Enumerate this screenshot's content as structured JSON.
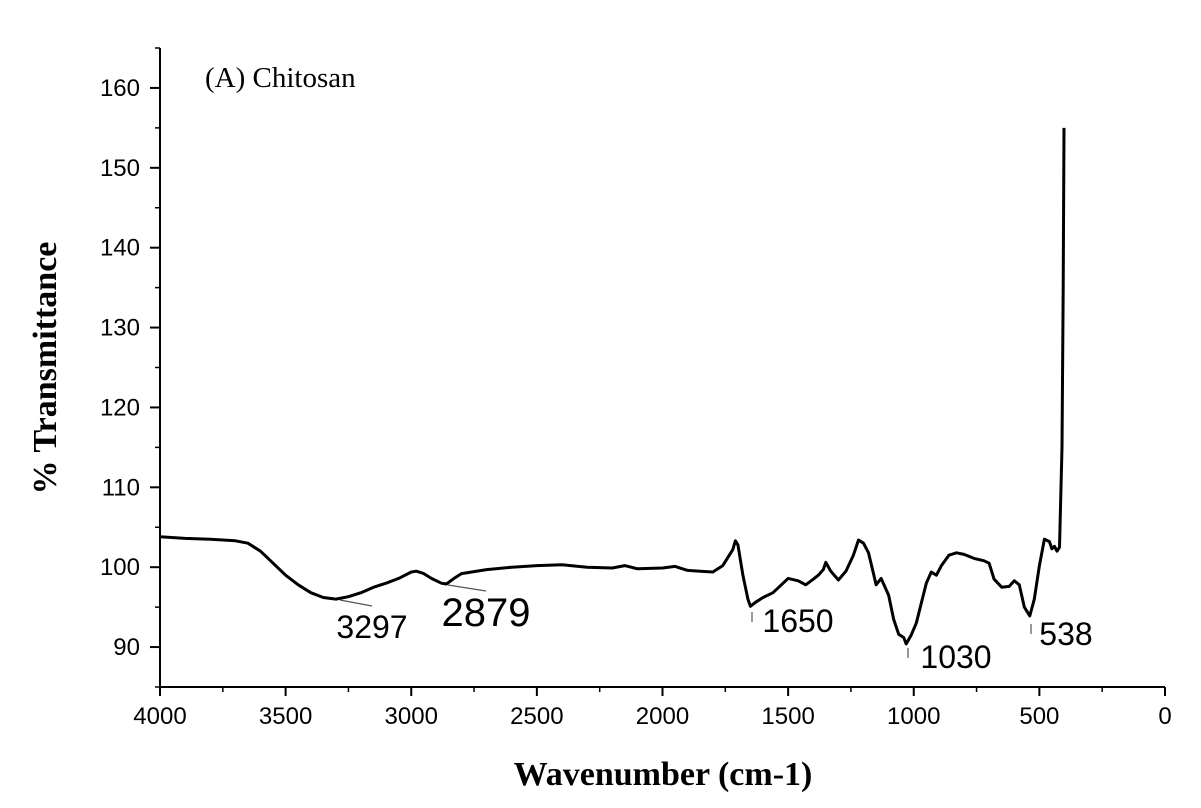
{
  "chart_data": {
    "type": "line",
    "title": "(A) Chitosan",
    "xlabel": "Wavenumber (cm-1)",
    "ylabel": "% Transmittance",
    "xlim": [
      4000,
      0
    ],
    "ylim": [
      85,
      165
    ],
    "x_ticks": [
      4000,
      3500,
      3000,
      2500,
      2000,
      1500,
      1000,
      500,
      0
    ],
    "y_ticks": [
      90,
      100,
      110,
      120,
      130,
      140,
      150,
      160
    ],
    "grid": false,
    "series": [
      {
        "color": "#000000",
        "points": [
          [
            4000,
            103.8
          ],
          [
            3900,
            103.6
          ],
          [
            3800,
            103.5
          ],
          [
            3700,
            103.3
          ],
          [
            3650,
            103.0
          ],
          [
            3600,
            102.0
          ],
          [
            3550,
            100.5
          ],
          [
            3500,
            99.0
          ],
          [
            3450,
            97.8
          ],
          [
            3400,
            96.8
          ],
          [
            3350,
            96.2
          ],
          [
            3300,
            96.0
          ],
          [
            3250,
            96.3
          ],
          [
            3200,
            96.8
          ],
          [
            3150,
            97.5
          ],
          [
            3100,
            98.0
          ],
          [
            3050,
            98.6
          ],
          [
            3000,
            99.4
          ],
          [
            2980,
            99.5
          ],
          [
            2950,
            99.2
          ],
          [
            2920,
            98.6
          ],
          [
            2880,
            98.0
          ],
          [
            2860,
            97.9
          ],
          [
            2830,
            98.6
          ],
          [
            2800,
            99.2
          ],
          [
            2700,
            99.7
          ],
          [
            2600,
            100.0
          ],
          [
            2500,
            100.2
          ],
          [
            2400,
            100.3
          ],
          [
            2300,
            100.0
          ],
          [
            2200,
            99.9
          ],
          [
            2150,
            100.2
          ],
          [
            2100,
            99.8
          ],
          [
            2000,
            99.9
          ],
          [
            1950,
            100.1
          ],
          [
            1900,
            99.6
          ],
          [
            1850,
            99.5
          ],
          [
            1800,
            99.4
          ],
          [
            1760,
            100.2
          ],
          [
            1720,
            102.2
          ],
          [
            1710,
            103.3
          ],
          [
            1700,
            102.8
          ],
          [
            1680,
            99.0
          ],
          [
            1660,
            96.0
          ],
          [
            1650,
            95.1
          ],
          [
            1630,
            95.6
          ],
          [
            1600,
            96.2
          ],
          [
            1560,
            96.8
          ],
          [
            1520,
            98.0
          ],
          [
            1500,
            98.6
          ],
          [
            1460,
            98.3
          ],
          [
            1430,
            97.8
          ],
          [
            1400,
            98.5
          ],
          [
            1380,
            99.0
          ],
          [
            1360,
            99.7
          ],
          [
            1350,
            100.6
          ],
          [
            1330,
            99.5
          ],
          [
            1300,
            98.4
          ],
          [
            1270,
            99.5
          ],
          [
            1240,
            101.5
          ],
          [
            1220,
            103.4
          ],
          [
            1200,
            103.0
          ],
          [
            1180,
            101.8
          ],
          [
            1160,
            99.2
          ],
          [
            1150,
            97.8
          ],
          [
            1130,
            98.6
          ],
          [
            1100,
            96.5
          ],
          [
            1080,
            93.5
          ],
          [
            1060,
            91.6
          ],
          [
            1040,
            91.2
          ],
          [
            1030,
            90.4
          ],
          [
            1010,
            91.5
          ],
          [
            990,
            93.0
          ],
          [
            970,
            95.5
          ],
          [
            950,
            98.0
          ],
          [
            930,
            99.4
          ],
          [
            910,
            99.0
          ],
          [
            890,
            100.2
          ],
          [
            860,
            101.5
          ],
          [
            830,
            101.8
          ],
          [
            800,
            101.6
          ],
          [
            760,
            101.1
          ],
          [
            720,
            100.8
          ],
          [
            700,
            100.5
          ],
          [
            680,
            98.5
          ],
          [
            650,
            97.5
          ],
          [
            620,
            97.6
          ],
          [
            600,
            98.3
          ],
          [
            580,
            97.8
          ],
          [
            560,
            95.0
          ],
          [
            538,
            93.9
          ],
          [
            520,
            96.0
          ],
          [
            500,
            100.2
          ],
          [
            480,
            103.5
          ],
          [
            460,
            103.2
          ],
          [
            450,
            102.3
          ],
          [
            440,
            102.6
          ],
          [
            430,
            102.0
          ],
          [
            420,
            102.5
          ],
          [
            410,
            115.0
          ],
          [
            405,
            135.0
          ],
          [
            402,
            155.0
          ]
        ]
      }
    ],
    "annotations": [
      {
        "text": "3297",
        "x": 3297
      },
      {
        "text": "2879",
        "x": 2879
      },
      {
        "text": "1650",
        "x": 1650
      },
      {
        "text": "1030",
        "x": 1030
      },
      {
        "text": "538",
        "x": 538
      }
    ]
  }
}
